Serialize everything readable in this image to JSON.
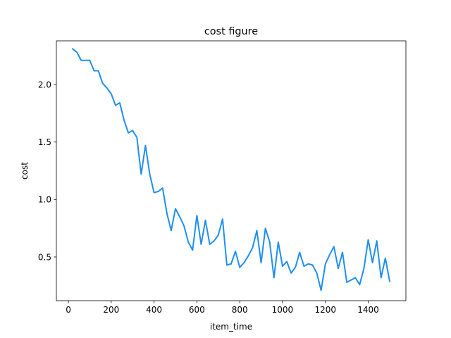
{
  "chart_data": {
    "type": "line",
    "title": "cost figure",
    "xlabel": "item_time",
    "ylabel": "cost",
    "xlim": [
      -56,
      1576
    ],
    "ylim": [
      0.12,
      2.38
    ],
    "xticks": [
      0,
      200,
      400,
      600,
      800,
      1000,
      1200,
      1400
    ],
    "yticks": [
      0.5,
      1.0,
      1.5,
      2.0
    ],
    "ytick_labels": [
      "0.5",
      "1.0",
      "1.5",
      "2.0"
    ],
    "grid": false,
    "series": [
      {
        "color": "#1f8fef",
        "x": [
          20,
          40,
          60,
          80,
          100,
          120,
          140,
          160,
          180,
          200,
          220,
          240,
          260,
          280,
          300,
          320,
          340,
          360,
          380,
          400,
          420,
          440,
          460,
          480,
          500,
          520,
          540,
          560,
          580,
          600,
          620,
          640,
          660,
          680,
          700,
          720,
          740,
          760,
          780,
          800,
          820,
          840,
          860,
          880,
          900,
          920,
          940,
          960,
          980,
          1000,
          1020,
          1040,
          1060,
          1080,
          1100,
          1120,
          1140,
          1160,
          1180,
          1200,
          1220,
          1240,
          1260,
          1280,
          1300,
          1320,
          1340,
          1360,
          1380,
          1400,
          1420,
          1440,
          1460,
          1480,
          1500
        ],
        "y": [
          2.31,
          2.28,
          2.21,
          2.21,
          2.21,
          2.12,
          2.12,
          2.01,
          1.97,
          1.92,
          1.82,
          1.84,
          1.69,
          1.58,
          1.6,
          1.54,
          1.22,
          1.47,
          1.22,
          1.06,
          1.07,
          1.1,
          0.88,
          0.73,
          0.92,
          0.85,
          0.77,
          0.63,
          0.56,
          0.86,
          0.61,
          0.82,
          0.61,
          0.64,
          0.69,
          0.83,
          0.43,
          0.44,
          0.55,
          0.41,
          0.45,
          0.51,
          0.58,
          0.73,
          0.45,
          0.75,
          0.63,
          0.32,
          0.63,
          0.42,
          0.46,
          0.36,
          0.41,
          0.54,
          0.42,
          0.44,
          0.43,
          0.36,
          0.21,
          0.44,
          0.52,
          0.59,
          0.4,
          0.54,
          0.28,
          0.3,
          0.32,
          0.26,
          0.4,
          0.65,
          0.45,
          0.64,
          0.32,
          0.49,
          0.29
        ]
      }
    ]
  }
}
